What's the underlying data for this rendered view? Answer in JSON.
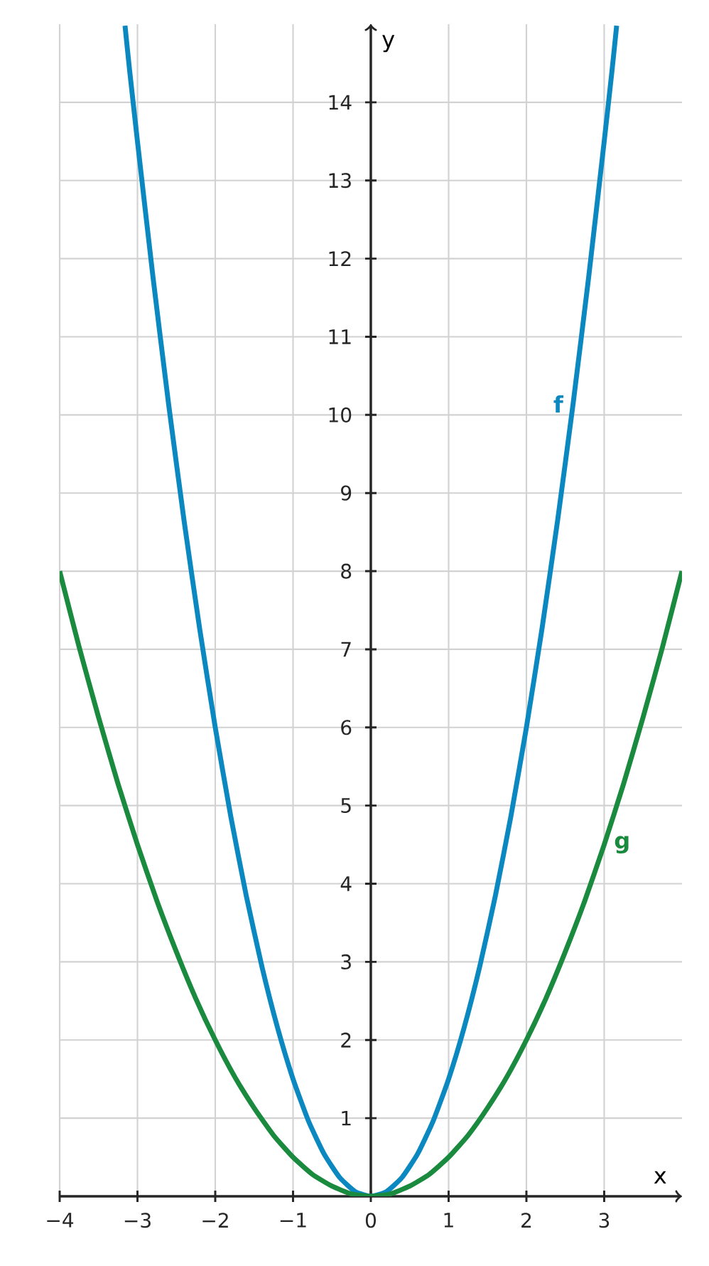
{
  "chart_data": {
    "type": "line",
    "xlabel": "x",
    "ylabel": "y",
    "xlim": [
      -4,
      4
    ],
    "ylim": [
      0,
      15
    ],
    "xticks": [
      {
        "value": -4,
        "label": "−4"
      },
      {
        "value": -3,
        "label": "−3"
      },
      {
        "value": -2,
        "label": "−2"
      },
      {
        "value": -1,
        "label": "−1"
      },
      0,
      1,
      2,
      3
    ],
    "yticks": [
      1,
      2,
      3,
      4,
      5,
      6,
      7,
      8,
      9,
      10,
      11,
      12,
      13,
      14
    ],
    "grid": true,
    "marker": "none",
    "series": [
      {
        "name": "f",
        "color": "#0a88bf",
        "x": [
          -3.16,
          -3.1,
          -3.0,
          -2.8,
          -2.6,
          -2.4,
          -2.2,
          -2.0,
          -1.8,
          -1.6,
          -1.4,
          -1.2,
          -1.0,
          -0.8,
          -0.6,
          -0.4,
          -0.2,
          0,
          0.2,
          0.4,
          0.6,
          0.8,
          1.0,
          1.2,
          1.4,
          1.6,
          1.8,
          2.0,
          2.2,
          2.4,
          2.6,
          2.8,
          3.0,
          3.1,
          3.16
        ],
        "values": [
          14.98,
          14.4,
          13.5,
          11.76,
          10.14,
          8.64,
          7.26,
          6,
          4.86,
          3.84,
          2.94,
          2.16,
          1.5,
          0.96,
          0.54,
          0.24,
          0.06,
          0,
          0.06,
          0.24,
          0.54,
          0.96,
          1.5,
          2.16,
          2.94,
          3.84,
          4.86,
          6,
          7.26,
          8.64,
          10.14,
          11.76,
          13.5,
          14.4,
          14.98
        ]
      },
      {
        "name": "g",
        "color": "#1a8a3e",
        "x": [
          -4,
          -3.75,
          -3.5,
          -3.25,
          -3,
          -2.75,
          -2.5,
          -2.25,
          -2,
          -1.75,
          -1.5,
          -1.25,
          -1,
          -0.75,
          -0.5,
          -0.25,
          0,
          0.25,
          0.5,
          0.75,
          1,
          1.25,
          1.5,
          1.75,
          2,
          2.25,
          2.5,
          2.75,
          3,
          3.25,
          3.5,
          3.75,
          4
        ],
        "values": [
          8,
          7.03,
          6.13,
          5.28,
          4.5,
          3.78,
          3.13,
          2.53,
          2,
          1.53,
          1.13,
          0.78,
          0.5,
          0.28,
          0.13,
          0.03,
          0,
          0.03,
          0.13,
          0.28,
          0.5,
          0.78,
          1.13,
          1.53,
          2,
          2.53,
          3.13,
          3.78,
          4.5,
          5.28,
          6.13,
          7.03,
          8
        ]
      }
    ]
  }
}
